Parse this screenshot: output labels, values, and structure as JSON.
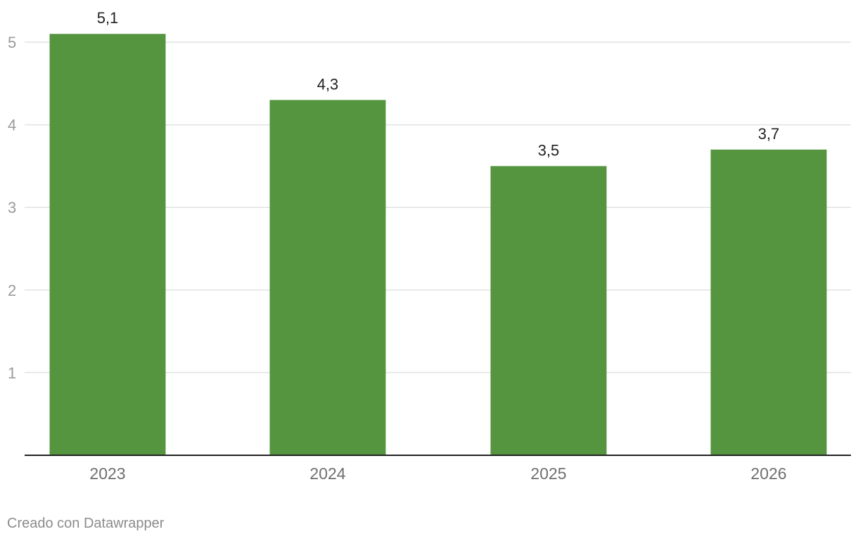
{
  "chart_data": {
    "type": "bar",
    "categories": [
      "2023",
      "2024",
      "2025",
      "2026"
    ],
    "values": [
      5.1,
      4.3,
      3.5,
      3.7
    ],
    "value_labels": [
      "5,1",
      "4,3",
      "3,5",
      "3,7"
    ],
    "yticks": [
      1,
      2,
      3,
      4,
      5
    ],
    "ylim": [
      0,
      5.2
    ],
    "grid": true,
    "bar_color": "#55953f",
    "title": "",
    "xlabel": "",
    "ylabel": ""
  },
  "footer": {
    "credit": "Creado con Datawrapper"
  }
}
